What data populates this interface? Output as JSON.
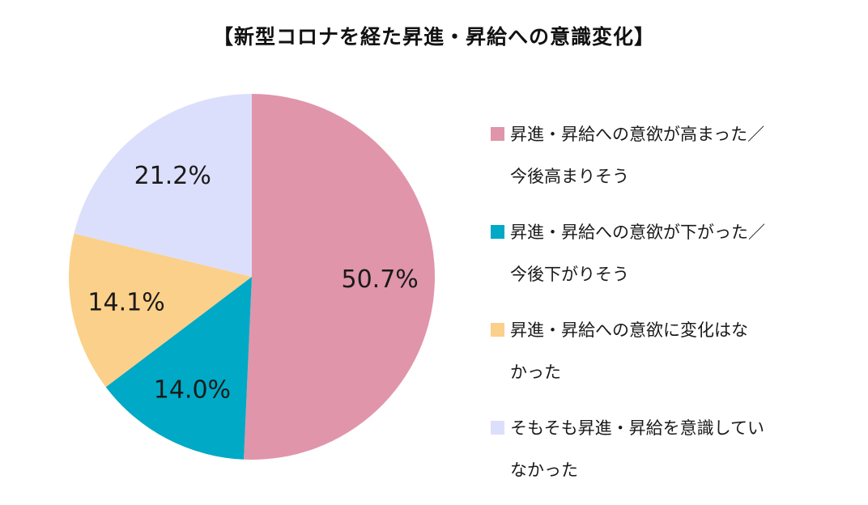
{
  "chart_data": {
    "type": "pie",
    "title": "【新型コロナを経た昇進・昇給への意識変化】",
    "slices": [
      {
        "label_lines": [
          "昇進・昇給への意欲が高まった／",
          "今後高まりそう"
        ],
        "value": 50.7,
        "value_label": "50.7%",
        "color": "#e095aa"
      },
      {
        "label_lines": [
          "昇進・昇給への意欲が下がった／",
          "今後下がりそう"
        ],
        "value": 14.0,
        "value_label": "14.0%",
        "color": "#00a9c5"
      },
      {
        "label_lines": [
          "昇進・昇給への意欲に変化はな",
          "かった"
        ],
        "value": 14.1,
        "value_label": "14.1%",
        "color": "#fbd08a"
      },
      {
        "label_lines": [
          "そもそも昇進・昇給を意識してい",
          "なかった"
        ],
        "value": 21.2,
        "value_label": "21.2%",
        "color": "#dcdffb"
      }
    ],
    "legend_position": "right"
  }
}
